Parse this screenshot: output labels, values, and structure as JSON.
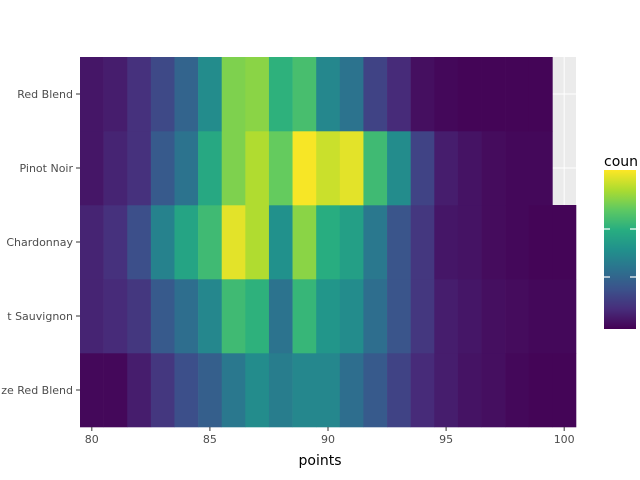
{
  "chart_data": {
    "type": "heatmap",
    "xlabel": "points",
    "ylabel": "",
    "xlim": [
      79.5,
      100.5
    ],
    "x_ticks": [
      80,
      85,
      90,
      95,
      100
    ],
    "x_tick_labels": [
      "80",
      "85",
      "90",
      "95",
      "100"
    ],
    "categories": [
      "ze Red Blend",
      "t Sauvignon",
      "Chardonnay",
      "Pinot Noir",
      "Red Blend"
    ],
    "legend_title": "coun",
    "legend_position": "right",
    "grid": true,
    "panel_background": "#ebebeb",
    "colormap": "viridis",
    "value_range": [
      0,
      1
    ],
    "rows": [
      {
        "category": "ze Red Blend",
        "x": [
          80,
          81,
          82,
          83,
          84,
          85,
          86,
          87,
          88,
          89,
          90,
          91,
          92,
          93,
          94,
          95,
          96,
          97,
          98,
          99,
          100
        ],
        "values": [
          0.02,
          0.02,
          0.08,
          0.16,
          0.24,
          0.3,
          0.4,
          0.48,
          0.42,
          0.46,
          0.46,
          0.36,
          0.28,
          0.2,
          0.12,
          0.08,
          0.05,
          0.04,
          0.02,
          0.01,
          0.01
        ]
      },
      {
        "category": "t Sauvignon",
        "x": [
          80,
          81,
          82,
          83,
          84,
          85,
          86,
          87,
          88,
          89,
          90,
          91,
          92,
          93,
          94,
          95,
          96,
          97,
          98,
          99,
          100
        ],
        "values": [
          0.1,
          0.12,
          0.16,
          0.28,
          0.36,
          0.46,
          0.68,
          0.64,
          0.38,
          0.66,
          0.52,
          0.48,
          0.36,
          0.26,
          0.16,
          0.08,
          0.06,
          0.04,
          0.03,
          0.02,
          0.02
        ]
      },
      {
        "category": "Chardonnay",
        "x": [
          80,
          81,
          82,
          83,
          84,
          85,
          86,
          87,
          88,
          89,
          90,
          91,
          92,
          93,
          94,
          95,
          96,
          97,
          98,
          99,
          100
        ],
        "values": [
          0.1,
          0.14,
          0.24,
          0.44,
          0.58,
          0.68,
          0.96,
          0.88,
          0.5,
          0.82,
          0.62,
          0.56,
          0.4,
          0.26,
          0.16,
          0.06,
          0.05,
          0.03,
          0.02,
          0.01,
          0.01
        ]
      },
      {
        "category": "Pinot Noir",
        "x": [
          80,
          81,
          82,
          83,
          84,
          85,
          86,
          87,
          88,
          89,
          90,
          91,
          92,
          93,
          94,
          95,
          96,
          97,
          98,
          99
        ],
        "values": [
          0.06,
          0.1,
          0.14,
          0.28,
          0.38,
          0.6,
          0.8,
          0.88,
          0.76,
          0.99,
          0.92,
          0.96,
          0.68,
          0.48,
          0.2,
          0.08,
          0.05,
          0.03,
          0.02,
          0.02
        ]
      },
      {
        "category": "Red Blend",
        "x": [
          80,
          81,
          82,
          83,
          84,
          85,
          86,
          87,
          88,
          89,
          90,
          91,
          92,
          93,
          94,
          95,
          96,
          97,
          98,
          99
        ],
        "values": [
          0.06,
          0.08,
          0.14,
          0.22,
          0.32,
          0.48,
          0.8,
          0.82,
          0.64,
          0.7,
          0.46,
          0.38,
          0.2,
          0.12,
          0.04,
          0.02,
          0.01,
          0.01,
          0.01,
          0.01
        ]
      }
    ]
  }
}
